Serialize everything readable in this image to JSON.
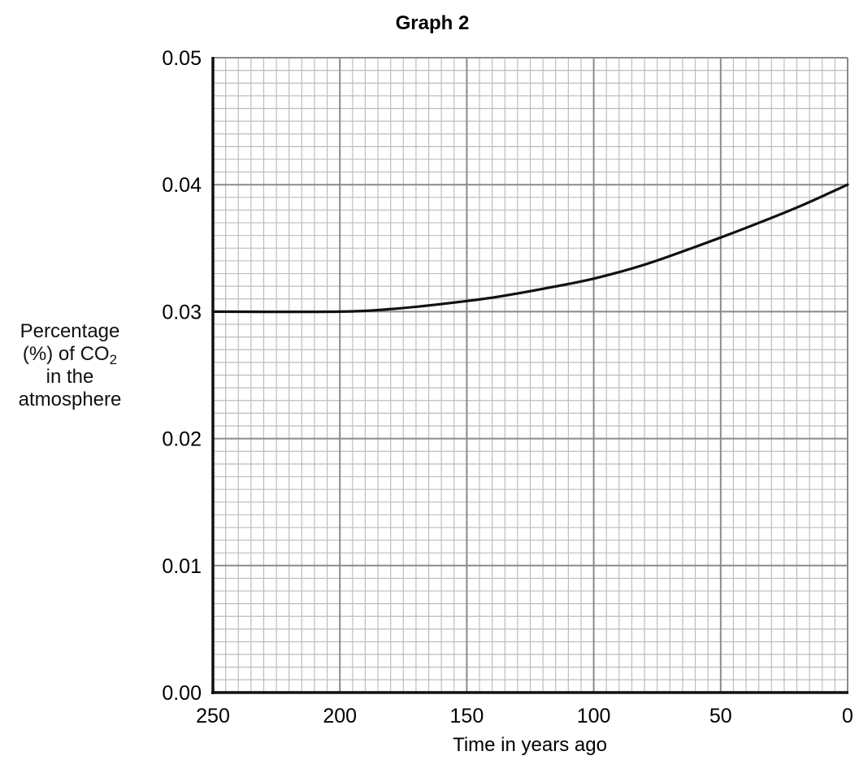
{
  "chart_data": {
    "type": "line",
    "title": "Graph 2",
    "xlabel": "Time in years ago",
    "ylabel": {
      "line1": "Percentage",
      "line2_prefix": "(%) of CO",
      "line2_sub": "2",
      "line3": "in the",
      "line4": "atmosphere"
    },
    "xlim": [
      250,
      0
    ],
    "ylim": [
      0.0,
      0.05
    ],
    "x_reversed": true,
    "x_ticks": [
      "250",
      "200",
      "150",
      "100",
      "50",
      "0"
    ],
    "x_tick_values": [
      250,
      200,
      150,
      100,
      50,
      0
    ],
    "y_ticks": [
      "0.00",
      "0.01",
      "0.02",
      "0.03",
      "0.04",
      "0.05"
    ],
    "y_tick_values": [
      0.0,
      0.01,
      0.02,
      0.03,
      0.04,
      0.05
    ],
    "grid": true,
    "series": [
      {
        "x": [
          250,
          200,
          180,
          160,
          140,
          120,
          100,
          80,
          60,
          40,
          20,
          0
        ],
        "y": [
          0.03,
          0.03,
          0.0302,
          0.0306,
          0.0311,
          0.0318,
          0.0326,
          0.0337,
          0.0351,
          0.0366,
          0.0382,
          0.04
        ]
      }
    ]
  }
}
